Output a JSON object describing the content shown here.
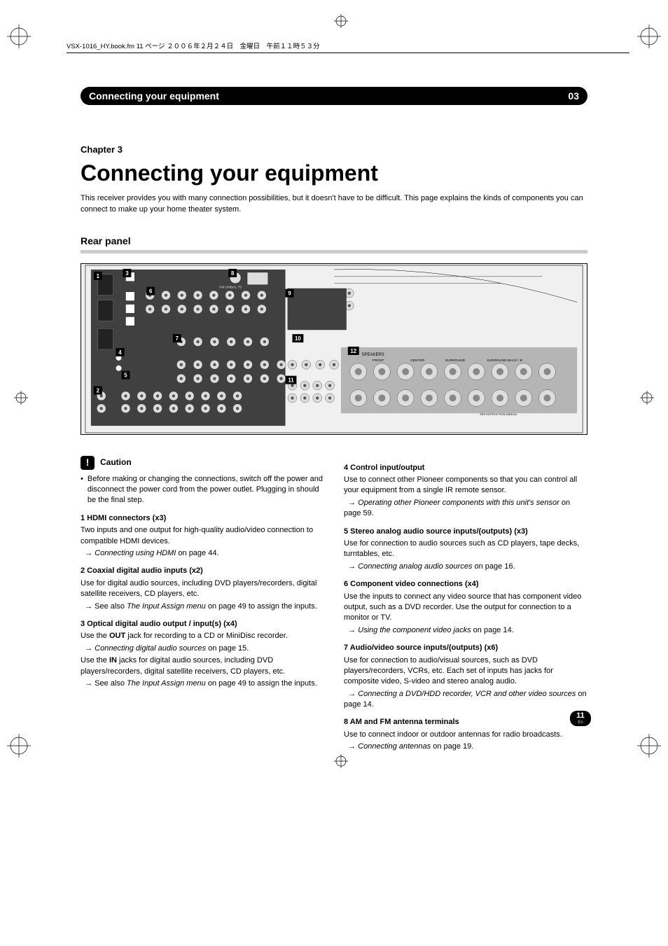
{
  "topline": "VSX-1016_HY.book.fm 11 ページ ２００６年２月２４日　金曜日　午前１１時５３分",
  "header": {
    "title": "Connecting your equipment",
    "num": "03"
  },
  "chapter": "Chapter 3",
  "main_title": "Connecting your equipment",
  "intro": "This receiver provides you with many connection possibilities, but it doesn't have to be difficult. This page explains the kinds of components you can connect to make up your home theater system.",
  "section": "Rear panel",
  "panel_labels": [
    "1",
    "2",
    "3",
    "4",
    "5",
    "6",
    "7",
    "8",
    "9",
    "10",
    "11",
    "12"
  ],
  "panel_text": {
    "speakers": "SPEAKERS",
    "front": "FRONT",
    "center": "CENTER",
    "surround": "SURROUND",
    "surround_back": "SURROUND BACK / B",
    "fm": "FM UNBAL 75",
    "see": "SEE INSTRUCTION MANUAL"
  },
  "caution": {
    "label": "Caution"
  },
  "caution_bullet": "Before making or changing the connections, switch off the power and disconnect the power cord from the power outlet. Plugging in should be the final step.",
  "items_left": [
    {
      "num": "1",
      "title": "HDMI connectors (x3)",
      "body": "Two inputs and one output for high-quality audio/video connection to compatible HDMI devices.",
      "ref": "Connecting using HDMI",
      "ref_tail": " on page 44."
    },
    {
      "num": "2",
      "title": "Coaxial digital audio inputs (x2)",
      "body": "Use for digital audio sources, including DVD players/recorders, digital satellite receivers, CD players, etc.",
      "extra_prefix": "See also ",
      "extra_ref": "The Input Assign menu",
      "extra_tail": " on page 49 to assign the inputs."
    },
    {
      "num": "3",
      "title": "Optical digital audio output / input(s) (x4)",
      "body_pre": "Use the ",
      "body_bold": "OUT",
      "body_post": " jack for recording to a CD or MiniDisc recorder.",
      "ref": "Connecting digital audio sources",
      "ref_tail": " on page 15.",
      "body2_pre": "Use the ",
      "body2_bold": "IN",
      "body2_post": " jacks for digital audio sources, including DVD players/recorders, digital satellite receivers, CD players, etc.",
      "extra_prefix": "See also ",
      "extra_ref": "The Input Assign menu",
      "extra_tail": " on page 49 to assign the inputs."
    }
  ],
  "items_right": [
    {
      "num": "4",
      "title": "Control input/output",
      "body": "Use to connect other Pioneer components so that you can control all your equipment from a single IR remote sensor.",
      "ref": "Operating other Pioneer components with this unit's sensor",
      "ref_tail": " on page 59."
    },
    {
      "num": "5",
      "title": "Stereo analog audio source inputs/(outputs) (x3)",
      "body": "Use for connection to audio sources such as CD players, tape decks, turntables, etc.",
      "ref": "Connecting analog audio sources",
      "ref_tail": " on page 16."
    },
    {
      "num": "6",
      "title": "Component video connections (x4)",
      "body": "Use the inputs to connect any video source that has component video output, such as a DVD recorder. Use the output for connection to a monitor or TV.",
      "ref": "Using the component video jacks",
      "ref_tail": " on page 14."
    },
    {
      "num": "7",
      "title": "Audio/video source inputs/(outputs) (x6)",
      "body": "Use for connection to audio/visual sources, such as DVD players/recorders, VCRs, etc. Each set of inputs has jacks for composite video, S-video and stereo analog audio.",
      "ref": "Connecting a DVD/HDD recorder, VCR and other video sources",
      "ref_tail": " on page 14."
    },
    {
      "num": "8",
      "title": "AM and FM antenna terminals",
      "body": "Use to connect indoor or outdoor antennas for radio broadcasts.",
      "ref": "Connecting antennas",
      "ref_tail": " on page 19."
    }
  ],
  "pagenum": "11",
  "pagelang": "En"
}
